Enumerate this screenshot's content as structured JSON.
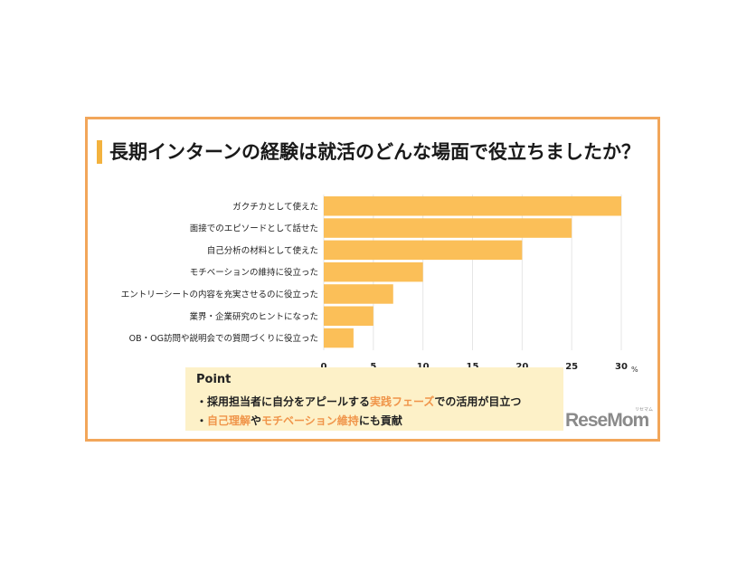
{
  "title": "長期インターンの経験は就活のどんな場面で役立ちましたか？",
  "chart_data": {
    "type": "bar",
    "orientation": "horizontal",
    "categories": [
      "ガクチカとして使えた",
      "面接でのエピソードとして話せた",
      "自己分析の材料として使えた",
      "モチベーションの維持に役立った",
      "エントリーシートの内容を充実させるのに役立った",
      "業界・企業研究のヒントになった",
      "OB・OG訪問や説明会での質問づくりに役立った"
    ],
    "values": [
      30,
      25,
      20,
      10,
      7,
      5,
      3
    ],
    "xlim": [
      0,
      30
    ],
    "xticks": [
      0,
      5,
      10,
      15,
      20,
      25,
      30
    ],
    "unit": "%",
    "grid": true,
    "bar_color": "#fbbf58"
  },
  "point": {
    "title": "Point",
    "line1_a": "・採用担当者に自分をアピールする",
    "line1_hl": "実践フェーズ",
    "line1_b": "での活用が目立つ",
    "line2_a": "・",
    "line2_hl1": "自己理解",
    "line2_b": "や",
    "line2_hl2": "モチベーション維持",
    "line2_c": "にも貢献"
  },
  "logo": {
    "text": "ReseMom",
    "kana": "リセマム"
  },
  "colors": {
    "border": "#f2a65a",
    "accent": "#f3b23e",
    "highlight": "#f0954a",
    "point_bg": "#fdf1c8"
  }
}
